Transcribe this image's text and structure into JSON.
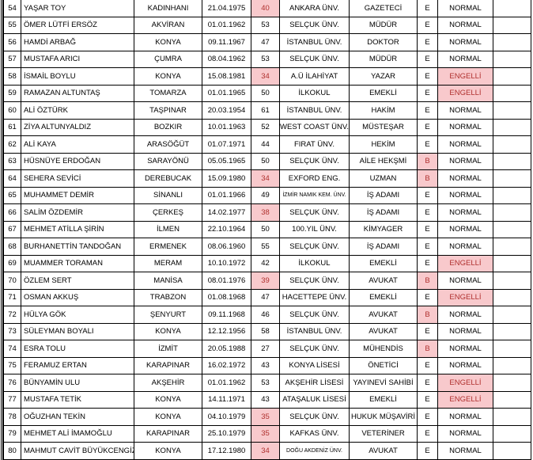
{
  "highlight_color": "#f8c9cc",
  "highlight_text_color": "#b0302e",
  "rows": [
    {
      "no": "54",
      "name": "YAŞAR TOY",
      "city": "KADINHANI",
      "birth": "21.04.1975",
      "age": "40",
      "age_hl": true,
      "school": "ANKARA ÜNV.",
      "job": "GAZETECİ",
      "gender": "E",
      "gender_hl": false,
      "status": "NORMAL",
      "status_hl": false
    },
    {
      "no": "55",
      "name": "ÖMER LÜTFİ ERSÖZ",
      "city": "AKVİRAN",
      "birth": "01.01.1962",
      "age": "53",
      "age_hl": false,
      "school": "SELÇUK ÜNV.",
      "job": "MÜDÜR",
      "gender": "E",
      "gender_hl": false,
      "status": "NORMAL",
      "status_hl": false
    },
    {
      "no": "56",
      "name": "HAMDİ ARBAĞ",
      "city": "KONYA",
      "birth": "09.11.1967",
      "age": "47",
      "age_hl": false,
      "school": "İSTANBUL ÜNV.",
      "job": "DOKTOR",
      "gender": "E",
      "gender_hl": false,
      "status": "NORMAL",
      "status_hl": false
    },
    {
      "no": "57",
      "name": "MUSTAFA ARICI",
      "city": "ÇUMRA",
      "birth": "08.04.1962",
      "age": "53",
      "age_hl": false,
      "school": "SELÇUK ÜNV.",
      "job": "MÜDÜR",
      "gender": "E",
      "gender_hl": false,
      "status": "NORMAL",
      "status_hl": false
    },
    {
      "no": "58",
      "name": "İSMAİL BOYLU",
      "city": "KONYA",
      "birth": "15.08.1981",
      "age": "34",
      "age_hl": true,
      "school": "A.Ü İLAHİYAT",
      "job": "YAZAR",
      "gender": "E",
      "gender_hl": false,
      "status": "ENGELLİ",
      "status_hl": true
    },
    {
      "no": "59",
      "name": "RAMAZAN ALTUNTAŞ",
      "city": "TOMARZA",
      "birth": "01.01.1965",
      "age": "50",
      "age_hl": false,
      "school": "İLKOKUL",
      "job": "EMEKLİ",
      "gender": "E",
      "gender_hl": false,
      "status": "ENGELLİ",
      "status_hl": true
    },
    {
      "no": "60",
      "name": "ALİ ÖZTÜRK",
      "city": "TAŞPINAR",
      "birth": "20.03.1954",
      "age": "61",
      "age_hl": false,
      "school": "İSTANBUL ÜNV.",
      "job": "HAKİM",
      "gender": "E",
      "gender_hl": false,
      "status": "NORMAL",
      "status_hl": false
    },
    {
      "no": "61",
      "name": "ZİYA ALTUNYALDIZ",
      "city": "BOZKIR",
      "birth": "10.01.1963",
      "age": "52",
      "age_hl": false,
      "school": "WEST COAST ÜNV.",
      "job": "MÜSTEŞAR",
      "gender": "E",
      "gender_hl": false,
      "status": "NORMAL",
      "status_hl": false
    },
    {
      "no": "62",
      "name": "ALİ KAYA",
      "city": "ARASÖĞÜT",
      "birth": "01.07.1971",
      "age": "44",
      "age_hl": false,
      "school": "FIRAT ÜNV.",
      "job": "HEKİM",
      "gender": "E",
      "gender_hl": false,
      "status": "NORMAL",
      "status_hl": false
    },
    {
      "no": "63",
      "name": "HÜSNÜYE ERDOĞAN",
      "city": "SARAYÖNÜ",
      "birth": "05.05.1965",
      "age": "50",
      "age_hl": false,
      "school": "SELÇUK ÜNV.",
      "job": "AİLE HEKŞMİ",
      "gender": "B",
      "gender_hl": true,
      "status": "NORMAL",
      "status_hl": false
    },
    {
      "no": "64",
      "name": "SEHERA SEVİCİ",
      "city": "DEREBUCAK",
      "birth": "15.09.1980",
      "age": "34",
      "age_hl": true,
      "school": "EXFORD ENG.",
      "job": "UZMAN",
      "gender": "B",
      "gender_hl": true,
      "status": "NORMAL",
      "status_hl": false
    },
    {
      "no": "65",
      "name": "MUHAMMET DEMİR",
      "city": "SİNANLI",
      "birth": "01.01.1966",
      "age": "49",
      "age_hl": false,
      "school": "İZMİR NAMIK KEM. ÜNV.",
      "school_small": true,
      "job": "İŞ ADAMI",
      "gender": "E",
      "gender_hl": false,
      "status": "NORMAL",
      "status_hl": false
    },
    {
      "no": "66",
      "name": "SALİM ÖZDEMİR",
      "city": "ÇERKEŞ",
      "birth": "14.02.1977",
      "age": "38",
      "age_hl": true,
      "school": "SELÇUK ÜNV.",
      "job": "İŞ ADAMI",
      "gender": "E",
      "gender_hl": false,
      "status": "NORMAL",
      "status_hl": false
    },
    {
      "no": "67",
      "name": "MEHMET ATİLLA ŞİRİN",
      "city": "İLMEN",
      "birth": "22.10.1964",
      "age": "50",
      "age_hl": false,
      "school": "100.YIL  ÜNV.",
      "job": "KİMYAGER",
      "gender": "E",
      "gender_hl": false,
      "status": "NORMAL",
      "status_hl": false
    },
    {
      "no": "68",
      "name": "BURHANETTİN TANDOĞAN",
      "city": "ERMENEK",
      "birth": "08.06.1960",
      "age": "55",
      "age_hl": false,
      "school": "SELÇUK ÜNV.",
      "job": "İŞ ADAMI",
      "gender": "E",
      "gender_hl": false,
      "status": "NORMAL",
      "status_hl": false
    },
    {
      "no": "69",
      "name": "MUAMMER TORAMAN",
      "city": "MERAM",
      "birth": "10.10.1972",
      "age": "42",
      "age_hl": false,
      "school": "İLKOKUL",
      "job": "EMEKLİ",
      "gender": "E",
      "gender_hl": false,
      "status": "ENGELLİ",
      "status_hl": true
    },
    {
      "no": "70",
      "name": "ÖZLEM SERT",
      "city": "MANİSA",
      "birth": "08.01.1976",
      "age": "39",
      "age_hl": true,
      "school": "SELÇUK ÜNV.",
      "job": "AVUKAT",
      "gender": "B",
      "gender_hl": true,
      "status": "NORMAL",
      "status_hl": false
    },
    {
      "no": "71",
      "name": "OSMAN AKKUŞ",
      "city": "TRABZON",
      "birth": "01.08.1968",
      "age": "47",
      "age_hl": false,
      "school": "HACETTEPE ÜNV.",
      "job": "EMEKLİ",
      "gender": "E",
      "gender_hl": false,
      "status": "ENGELLİ",
      "status_hl": true
    },
    {
      "no": "72",
      "name": "HÜLYA GÖK",
      "city": "ŞENYURT",
      "birth": "09.11.1968",
      "age": "46",
      "age_hl": false,
      "school": "SELÇUK ÜNV.",
      "job": "AVUKAT",
      "gender": "B",
      "gender_hl": true,
      "status": "NORMAL",
      "status_hl": false
    },
    {
      "no": "73",
      "name": "SÜLEYMAN BOYALI",
      "city": "KONYA",
      "birth": "12.12.1956",
      "age": "58",
      "age_hl": false,
      "school": "İSTANBUL ÜNV.",
      "job": "AVUKAT",
      "gender": "E",
      "gender_hl": false,
      "status": "NORMAL",
      "status_hl": false
    },
    {
      "no": "74",
      "name": "ESRA TOLU",
      "city": "İZMİT",
      "birth": "20.05.1988",
      "age": "27",
      "age_hl": false,
      "school": "SELÇUK ÜNV.",
      "job": "MÜHENDİS",
      "gender": "B",
      "gender_hl": true,
      "status": "NORMAL",
      "status_hl": false
    },
    {
      "no": "75",
      "name": "FERAMUZ ERTAN",
      "city": "KARAPINAR",
      "birth": "16.02.1972",
      "age": "43",
      "age_hl": false,
      "school": "KONYA LİSESİ",
      "job": "ÖNETİCİ",
      "gender": "E",
      "gender_hl": false,
      "status": "NORMAL",
      "status_hl": false
    },
    {
      "no": "76",
      "name": "BÜNYAMİN ULU",
      "city": "AKŞEHİR",
      "birth": "01.01.1962",
      "age": "53",
      "age_hl": false,
      "school": "AKŞEHİR LİSESİ",
      "job": "YAYINEVİ SAHİBİ",
      "gender": "E",
      "gender_hl": false,
      "status": "ENGELLİ",
      "status_hl": true
    },
    {
      "no": "77",
      "name": "MUSTAFA TETİK",
      "city": "KONYA",
      "birth": "14.11.1971",
      "age": "43",
      "age_hl": false,
      "school": "ATAŞALUK LİSESİ",
      "job": "EMEKLİ",
      "gender": "E",
      "gender_hl": false,
      "status": "ENGELLİ",
      "status_hl": true
    },
    {
      "no": "78",
      "name": "OĞUZHAN TEKİN",
      "city": "KONYA",
      "birth": "04.10.1979",
      "age": "35",
      "age_hl": true,
      "school": "SELÇUK ÜNV.",
      "job": "HUKUK MÜŞAVİRİ",
      "gender": "E",
      "gender_hl": false,
      "status": "NORMAL",
      "status_hl": false
    },
    {
      "no": "79",
      "name": "MEHMET ALİ İMAMOĞLU",
      "city": "KARAPINAR",
      "birth": "25.10.1979",
      "age": "35",
      "age_hl": true,
      "school": "KAFKAS ÜNV.",
      "job": "VETERİNER",
      "gender": "E",
      "gender_hl": false,
      "status": "NORMAL",
      "status_hl": false
    },
    {
      "no": "80",
      "name": "MAHMUT CAVİT BÜYÜKCENGİZ",
      "city": "KONYA",
      "birth": "17.12.1980",
      "age": "34",
      "age_hl": true,
      "school": "DOĞU AKDENİZ ÜNV.",
      "school_small": true,
      "job": "AVUKAT",
      "gender": "E",
      "gender_hl": false,
      "status": "NORMAL",
      "status_hl": false
    }
  ]
}
